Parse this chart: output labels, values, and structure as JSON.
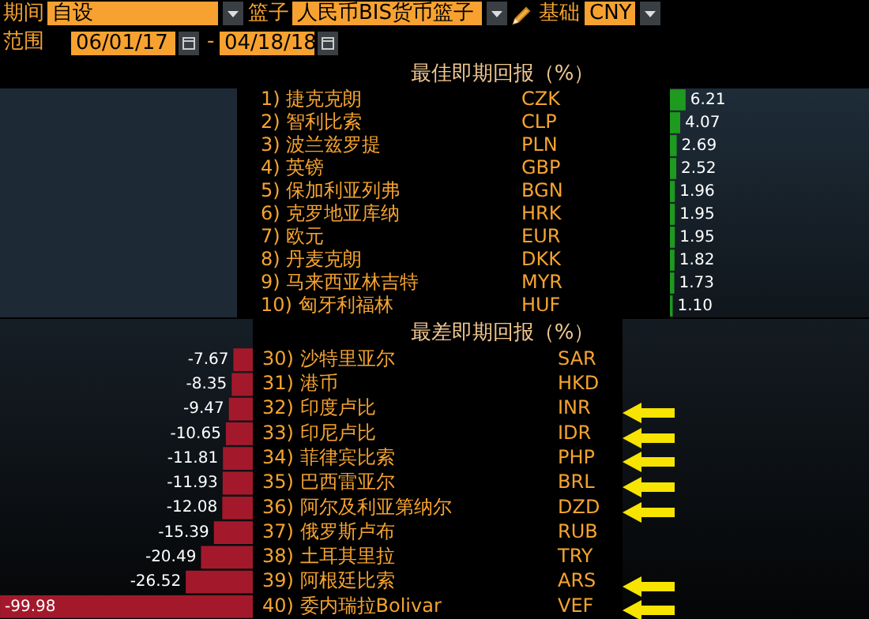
{
  "chart_data": [
    {
      "type": "other",
      "annotations": [
        "期间",
        "自设",
        "篮子",
        "人民币BIS货币篮子",
        "基础",
        "CNY",
        "范围",
        "06/01/17",
        "-",
        "04/18/18"
      ]
    },
    {
      "type": "bar",
      "orientation": "horizontal",
      "title": "最佳即期回报（%）",
      "tick_labels": "y",
      "color": "#1e9a1e",
      "value_labels": [
        "6.21",
        "4.07",
        "2.69",
        "2.52",
        "1.96",
        "1.95",
        "1.95",
        "1.82",
        "1.73",
        "1.10"
      ],
      "categories": [
        "1) 捷克克朗",
        "2) 智利比索",
        "3) 波兰兹罗提",
        "4) 英镑",
        "5) 保加利亚列弗",
        "6) 克罗地亚库纳",
        "7) 欧元",
        "8) 丹麦克朗",
        "9) 马来西亚林吉特",
        "10) 匈牙利福林"
      ],
      "values": [
        6.21,
        4.07,
        2.69,
        2.52,
        1.96,
        1.95,
        1.95,
        1.82,
        1.73,
        1.1
      ],
      "annotations": [
        "CZK",
        "CLP",
        "PLN",
        "GBP",
        "BGN",
        "HRK",
        "EUR",
        "DKK",
        "MYR",
        "HUF"
      ]
    },
    {
      "type": "bar",
      "orientation": "horizontal",
      "title": "最差即期回报（%）",
      "tick_labels": "y",
      "color": "#a3192b",
      "value_labels": [
        "-7.67",
        "-8.35",
        "-9.47",
        "-10.65",
        "-11.81",
        "-11.93",
        "-12.08",
        "-15.39",
        "-20.49",
        "-26.52",
        "-99.98"
      ],
      "categories": [
        "30) 沙特里亚尔",
        "31) 港币",
        "32) 印度卢比",
        "33) 印尼卢比",
        "34) 菲律宾比索",
        "35) 巴西雷亚尔",
        "36) 阿尔及利亚第纳尔",
        "37) 俄罗斯卢布",
        "38) 土耳其里拉",
        "39) 阿根廷比索",
        "40) 委内瑞拉Bolivar"
      ],
      "values": [
        -7.67,
        -8.35,
        -9.47,
        -10.65,
        -11.81,
        -11.93,
        -12.08,
        -15.39,
        -20.49,
        -26.52,
        -99.98
      ],
      "annotations": [
        "SAR",
        "HKD",
        "INR",
        "IDR",
        "PHP",
        "BRL",
        "DZD",
        "RUB",
        "TRY",
        "ARS",
        "VEF"
      ]
    }
  ]
}
